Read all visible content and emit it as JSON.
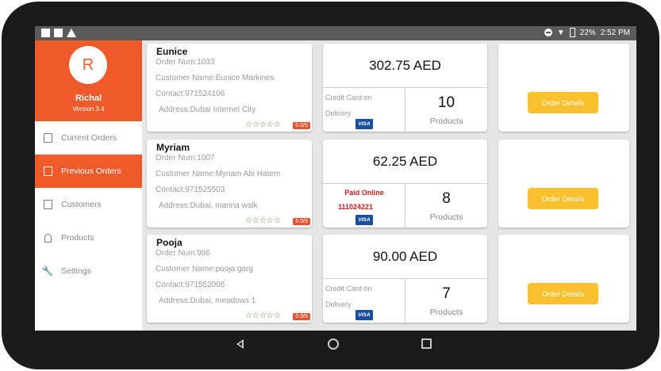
{
  "status_bar": {
    "battery": "22%",
    "time": "2:52 PM"
  },
  "sidebar": {
    "avatar_initial": "R",
    "user_name": "Richal",
    "version": "Version 3.4",
    "items": [
      {
        "label": "Current Orders",
        "icon": "list-icon"
      },
      {
        "label": "Previous Orders",
        "icon": "clipboard-check-icon"
      },
      {
        "label": "Customers",
        "icon": "contact-card-icon"
      },
      {
        "label": "Products",
        "icon": "bell-icon"
      },
      {
        "label": "Settings",
        "icon": "wrench-icon"
      }
    ],
    "active_index": 1
  },
  "orders": [
    {
      "name": "Eunice",
      "order_num": "Order Num:1033",
      "customer": "Customer Name:Eunice Markines",
      "contact": "Contact:971524106",
      "address": "Address:Dubai Internet City",
      "stars": "☆☆☆☆☆",
      "rating": "0.0/5",
      "amount": "302.75 AED",
      "payment_line1": "Credit Card on",
      "payment_line2": "Delivery",
      "payment_online": false,
      "card_brand": "VISA",
      "product_count": "10",
      "products_label": "Products",
      "details_button": "Order Details"
    },
    {
      "name": "Myriam",
      "order_num": "Order Num:1007",
      "customer": "Customer Name:Myriam Abi Hatem",
      "contact": "Contact:971525503",
      "address": "Address:Dubai, marina walk",
      "stars": "☆☆☆☆☆",
      "rating": "0.0/5",
      "amount": "62.25 AED",
      "payment_line1": "Paid Online",
      "payment_line2": "111024221",
      "payment_online": true,
      "card_brand": "VISA",
      "product_count": "8",
      "products_label": "Products",
      "details_button": "Order Details"
    },
    {
      "name": "Pooja",
      "order_num": "Order Num:986",
      "customer": "Customer Name:pooja garg",
      "contact": "Contact:971552006",
      "address": "Address:Dubai, meadows 1",
      "stars": "☆☆☆☆☆",
      "rating": "0.0/5",
      "amount": "90.00 AED",
      "payment_line1": "Credit Card on",
      "payment_line2": "Delivery",
      "payment_online": false,
      "card_brand": "VISA",
      "product_count": "7",
      "products_label": "Products",
      "details_button": "Order Details"
    }
  ],
  "colors": {
    "accent": "#ef5a2b",
    "button": "#fbc02d",
    "online_text": "#c81f1f",
    "visa": "#1a4fa0"
  }
}
